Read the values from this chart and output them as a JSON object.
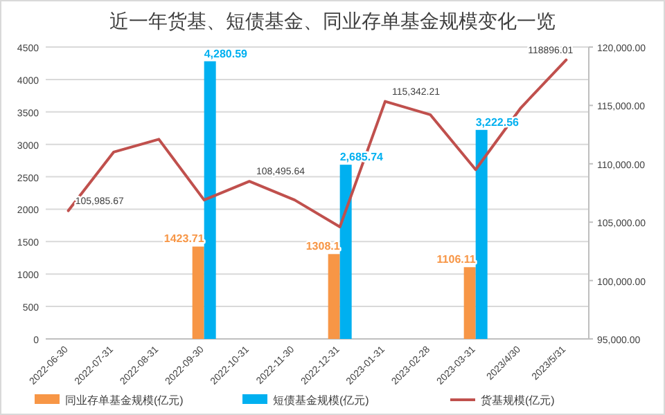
{
  "chart_data": {
    "type": "bar",
    "title": "近一年货基、短债基金、同业存单基金规模变化一览",
    "categories": [
      "2022-06-30",
      "2022-07-31",
      "2022-08-31",
      "2022-09-30",
      "2022-10-31",
      "2022-11-30",
      "2022-12-31",
      "2023-01-31",
      "2023-02-28",
      "2023-03-31",
      "2023/4/30",
      "2023/5/31"
    ],
    "series": [
      {
        "name": "同业存单基金规模(亿元)",
        "color": "#f79646",
        "values": [
          null,
          null,
          null,
          1423.71,
          null,
          null,
          1308.1,
          null,
          null,
          1106.11,
          null,
          null
        ],
        "value_labels": [
          null,
          null,
          null,
          "1423.71",
          null,
          null,
          "1308.1",
          null,
          null,
          "1106.11",
          null,
          null
        ]
      },
      {
        "name": "短债基金规模(亿元)",
        "color": "#00b0f0",
        "values": [
          null,
          null,
          null,
          4280.59,
          null,
          null,
          2685.74,
          null,
          null,
          3222.56,
          null,
          null
        ],
        "value_labels": [
          null,
          null,
          null,
          "4,280.59",
          null,
          null,
          "2,685.74",
          null,
          null,
          "3,222.56",
          null,
          null
        ]
      },
      {
        "name": "货基规模(亿元)",
        "type": "line",
        "axis": "y2",
        "color": "#c0504d",
        "values": [
          105985.67,
          111000,
          112100,
          106900,
          108495.64,
          106900,
          104600,
          115342.21,
          114200,
          109500,
          114800,
          118896.01
        ],
        "value_labels": [
          "105,985.67",
          null,
          null,
          null,
          "108,495.64",
          null,
          null,
          "115,342.21",
          null,
          null,
          null,
          "118896.01"
        ]
      }
    ],
    "ylim": [
      0,
      4500
    ],
    "yticks": [
      0,
      500,
      1000,
      1500,
      2000,
      2500,
      3000,
      3500,
      4000,
      4500
    ],
    "y2lim": [
      95000,
      120000
    ],
    "y2ticks": [
      {
        "value": 95000,
        "label": "95,000.00"
      },
      {
        "value": 100000,
        "label": "100,000.00"
      },
      {
        "value": 105000,
        "label": "105,000.00"
      },
      {
        "value": 110000,
        "label": "110,000.00"
      },
      {
        "value": 115000,
        "label": "115,000.00"
      },
      {
        "value": 120000,
        "label": "120,000.00"
      }
    ],
    "grid": "y",
    "legend": "bottom",
    "marker": "none"
  }
}
